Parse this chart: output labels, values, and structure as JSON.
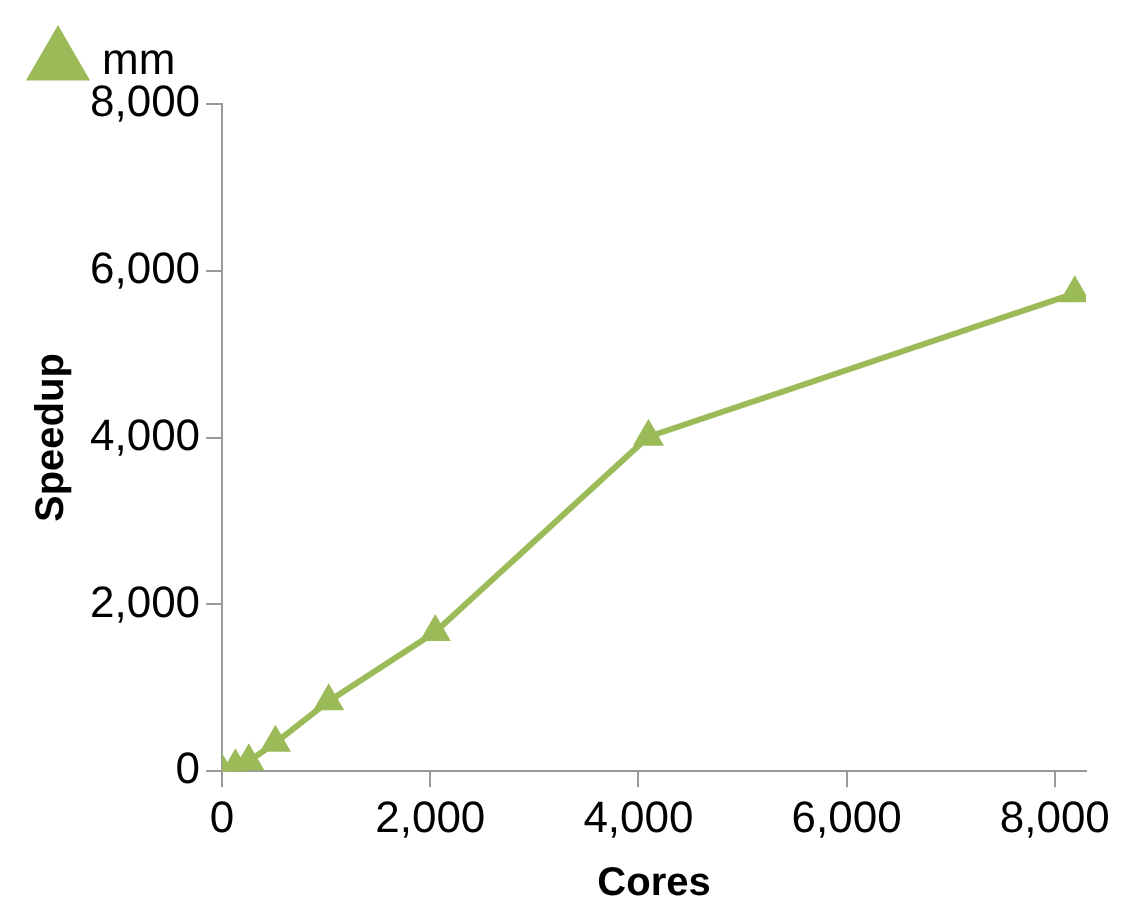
{
  "chart_data": {
    "type": "line",
    "xlabel": "Cores",
    "ylabel": "Speedup",
    "x": [
      1,
      128,
      256,
      512,
      1024,
      2048,
      4096,
      8192
    ],
    "series": [
      {
        "name": "mm",
        "color": "#9bbb59",
        "values": [
          0,
          60,
          120,
          340,
          840,
          1670,
          4010,
          5730
        ]
      }
    ],
    "xlim": [
      0,
      8300
    ],
    "xticks": [
      {
        "value": 0,
        "label": "0"
      },
      {
        "value": 2000,
        "label": "2,000"
      },
      {
        "value": 4000,
        "label": "4,000"
      },
      {
        "value": 6000,
        "label": "6,000"
      },
      {
        "value": 8000,
        "label": "8,000"
      }
    ],
    "ylim": [
      0,
      8000
    ],
    "yticks": [
      {
        "value": 0,
        "label": "0"
      },
      {
        "value": 2000,
        "label": "2,000"
      },
      {
        "value": 4000,
        "label": "4,000"
      },
      {
        "value": 6000,
        "label": "6,000"
      },
      {
        "value": 8000,
        "label": "8,000"
      }
    ],
    "grid": false,
    "legend": "top left",
    "marker": "triangle",
    "line_style": "solid"
  }
}
